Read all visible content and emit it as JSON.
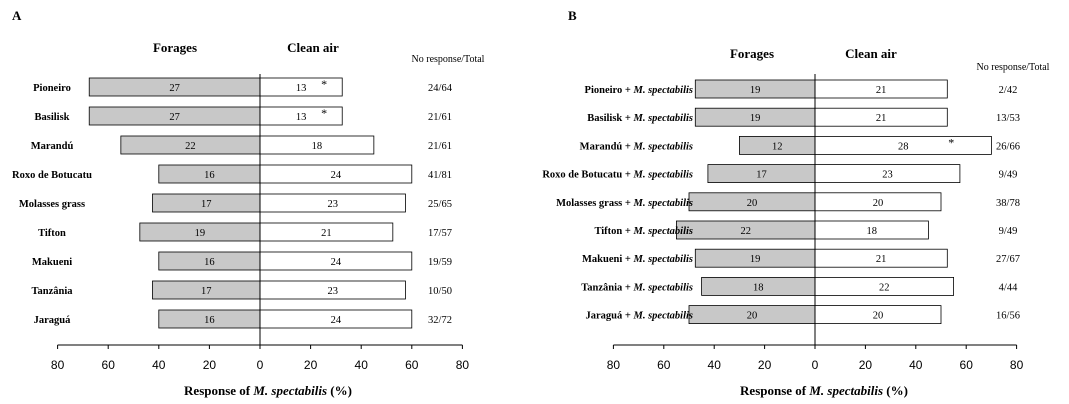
{
  "chart_data": [
    {
      "type": "bar",
      "panel": "A",
      "left_header": "Forages",
      "right_header": "Clean air",
      "extra_header": "No response/Total",
      "xlabel_parts": [
        "Response of ",
        "M. spectabilis",
        " (%)"
      ],
      "ticks": [
        "80",
        "60",
        "40",
        "20",
        "0",
        "20",
        "40",
        "60",
        "80"
      ],
      "xlim": [
        -80,
        80
      ],
      "categories": [
        {
          "name": "Pioneiro",
          "suffix": ""
        },
        {
          "name": "Basilisk",
          "suffix": ""
        },
        {
          "name": "Marandú",
          "suffix": ""
        },
        {
          "name": "Roxo de Botucatu",
          "suffix": ""
        },
        {
          "name": "Molasses grass",
          "suffix": ""
        },
        {
          "name": "Tifton",
          "suffix": ""
        },
        {
          "name": "Makueni",
          "suffix": ""
        },
        {
          "name": "Tanzânia",
          "suffix": ""
        },
        {
          "name": "Jaraguá",
          "suffix": ""
        }
      ],
      "forages": [
        27,
        27,
        22,
        16,
        17,
        19,
        16,
        17,
        16
      ],
      "clean_air": [
        13,
        13,
        18,
        24,
        23,
        21,
        24,
        23,
        24
      ],
      "forages_pct": [
        67.5,
        67.5,
        55,
        40,
        42.5,
        47.5,
        40,
        42.5,
        40
      ],
      "clean_air_pct": [
        32.5,
        32.5,
        45,
        60,
        57.5,
        52.5,
        60,
        57.5,
        60
      ],
      "significant": [
        "*",
        "*",
        "",
        "",
        "",
        "",
        "",
        "",
        ""
      ],
      "no_response": [
        "24/64",
        "21/61",
        "21/61",
        "41/81",
        "25/65",
        "17/57",
        "19/59",
        "10/50",
        "32/72"
      ]
    },
    {
      "type": "bar",
      "panel": "B",
      "left_header": "Forages",
      "right_header": "Clean air",
      "extra_header": "No response/Total",
      "xlabel_parts": [
        "Response of ",
        "M. spectabilis",
        " (%)"
      ],
      "ticks": [
        "80",
        "60",
        "40",
        "20",
        "0",
        "20",
        "40",
        "60",
        "80"
      ],
      "xlim": [
        -80,
        80
      ],
      "categories": [
        {
          "name": "Pioneiro + ",
          "suffix": "M. spectabilis"
        },
        {
          "name": "Basilisk + ",
          "suffix": "M. spectabilis"
        },
        {
          "name": "Marandú + ",
          "suffix": "M. spectabilis"
        },
        {
          "name": "Roxo de Botucatu + ",
          "suffix": "M. spectabilis"
        },
        {
          "name": "Molasses grass + ",
          "suffix": "M. spectabilis"
        },
        {
          "name": "Tifton + ",
          "suffix": "M. spectabilis"
        },
        {
          "name": "Makueni + ",
          "suffix": "M. spectabilis"
        },
        {
          "name": "Tanzânia + ",
          "suffix": "M. spectabilis"
        },
        {
          "name": "Jaraguá + ",
          "suffix": "M. spectabilis"
        }
      ],
      "forages": [
        19,
        19,
        12,
        17,
        20,
        22,
        19,
        18,
        20
      ],
      "clean_air": [
        21,
        21,
        28,
        23,
        20,
        18,
        21,
        22,
        20
      ],
      "forages_pct": [
        47.5,
        47.5,
        30,
        42.5,
        50,
        55,
        47.5,
        45,
        50
      ],
      "clean_air_pct": [
        52.5,
        52.5,
        70,
        57.5,
        50,
        45,
        52.5,
        55,
        50
      ],
      "significant": [
        "",
        "",
        "*",
        "",
        "",
        "",
        "",
        "",
        ""
      ],
      "no_response": [
        "2/42",
        "13/53",
        "26/66",
        "9/49",
        "38/78",
        "9/49",
        "27/67",
        "4/44",
        "16/56"
      ]
    }
  ],
  "colors": {
    "forages_fill": "#c8c8c8",
    "clean_air_fill": "#ffffff",
    "stroke": "#000000"
  }
}
